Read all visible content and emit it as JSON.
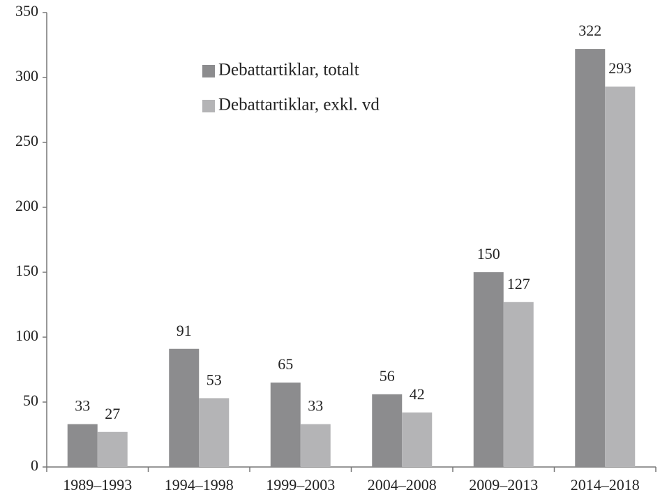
{
  "chart_data": {
    "type": "bar",
    "categories": [
      "1989–1993",
      "1994–1998",
      "1999–2003",
      "2004–2008",
      "2009–2013",
      "2014–2018"
    ],
    "series": [
      {
        "name": "Debattartiklar, totalt",
        "color": "#8c8c8e",
        "values": [
          33,
          91,
          65,
          56,
          150,
          322
        ]
      },
      {
        "name": "Debattartiklar, exkl. vd",
        "color": "#b4b4b6",
        "values": [
          27,
          53,
          33,
          42,
          127,
          293
        ]
      }
    ],
    "ylim": [
      0,
      350
    ],
    "yticks": [
      0,
      50,
      100,
      150,
      200,
      250,
      300,
      350
    ],
    "grid": false,
    "legend": "top-left"
  }
}
